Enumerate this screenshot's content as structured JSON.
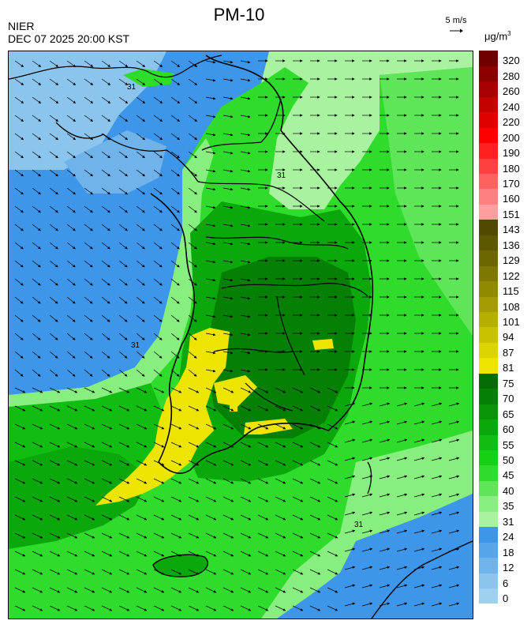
{
  "header": {
    "title": "PM-10",
    "source": "NIER",
    "timestamp": "DEC 07 2025 20:00 KST"
  },
  "wind_reference": {
    "label": "5 m/s"
  },
  "colorbar": {
    "unit_main": "μg/m",
    "unit_exp": "3",
    "levels": [
      {
        "label": "0",
        "color": "#9fd1ef"
      },
      {
        "label": "6",
        "color": "#8bc4ec"
      },
      {
        "label": "12",
        "color": "#6fb3ea"
      },
      {
        "label": "18",
        "color": "#56a4ea"
      },
      {
        "label": "24",
        "color": "#3d96ea"
      },
      {
        "label": "31",
        "color": "#a8f2a0"
      },
      {
        "label": "35",
        "color": "#88ee80"
      },
      {
        "label": "40",
        "color": "#5ee558"
      },
      {
        "label": "45",
        "color": "#2fdc2c"
      },
      {
        "label": "50",
        "color": "#16d016"
      },
      {
        "label": "55",
        "color": "#10bd10"
      },
      {
        "label": "60",
        "color": "#0aa80a"
      },
      {
        "label": "65",
        "color": "#079407"
      },
      {
        "label": "70",
        "color": "#058005"
      },
      {
        "label": "75",
        "color": "#046c04"
      },
      {
        "label": "81",
        "color": "#ede400"
      },
      {
        "label": "87",
        "color": "#dcd400"
      },
      {
        "label": "94",
        "color": "#c9c200"
      },
      {
        "label": "101",
        "color": "#b6af00"
      },
      {
        "label": "108",
        "color": "#a39c00"
      },
      {
        "label": "115",
        "color": "#908a00"
      },
      {
        "label": "122",
        "color": "#7e7800"
      },
      {
        "label": "129",
        "color": "#6d6700"
      },
      {
        "label": "136",
        "color": "#5d5800"
      },
      {
        "label": "143",
        "color": "#4f4a00"
      },
      {
        "label": "151",
        "color": "#ff9e9e"
      },
      {
        "label": "160",
        "color": "#ff8080"
      },
      {
        "label": "170",
        "color": "#ff6060"
      },
      {
        "label": "180",
        "color": "#ff4040"
      },
      {
        "label": "190",
        "color": "#ff2020"
      },
      {
        "label": "200",
        "color": "#ff0000"
      },
      {
        "label": "220",
        "color": "#e00000"
      },
      {
        "label": "240",
        "color": "#c40000"
      },
      {
        "label": "260",
        "color": "#a80000"
      },
      {
        "label": "280",
        "color": "#8c0000"
      },
      {
        "label": "320",
        "color": "#700000"
      }
    ]
  },
  "map": {
    "contour_labels": [
      "31",
      "31",
      "31",
      "31"
    ]
  }
}
